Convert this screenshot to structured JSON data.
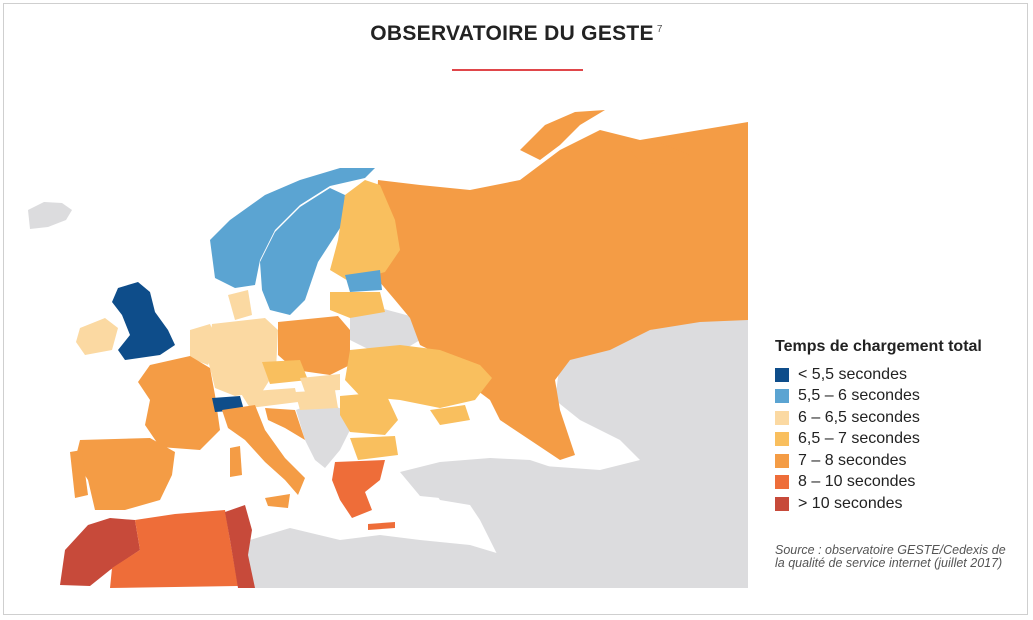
{
  "title": "OBSERVATOIRE DU GESTE",
  "title_note": "7",
  "colors": {
    "accent_rule": "#e0464a",
    "no_data": "#dcdcde",
    "c1": "#0e4d8a",
    "c2": "#5ba4d2",
    "c3": "#fbd9a2",
    "c4": "#f9bf5e",
    "c5": "#f49c45",
    "c6": "#ee6d39",
    "c7": "#c74a3a"
  },
  "legend": {
    "title": "Temps de chargement total",
    "items": [
      {
        "label": "< 5,5 secondes",
        "color": "#0e4d8a"
      },
      {
        "label": "5,5 – 6 secondes",
        "color": "#5ba4d2"
      },
      {
        "label": "6 – 6,5 secondes",
        "color": "#fbd9a2"
      },
      {
        "label": "6,5 – 7 secondes",
        "color": "#f9bf5e"
      },
      {
        "label": "7 – 8 secondes",
        "color": "#f49c45"
      },
      {
        "label": "8 – 10 secondes",
        "color": "#ee6d39"
      },
      {
        "label": "> 10 secondes",
        "color": "#c74a3a"
      }
    ]
  },
  "source": "Source : observatoire GESTE/Cedexis de la qualité de service internet (juillet 2017)"
}
